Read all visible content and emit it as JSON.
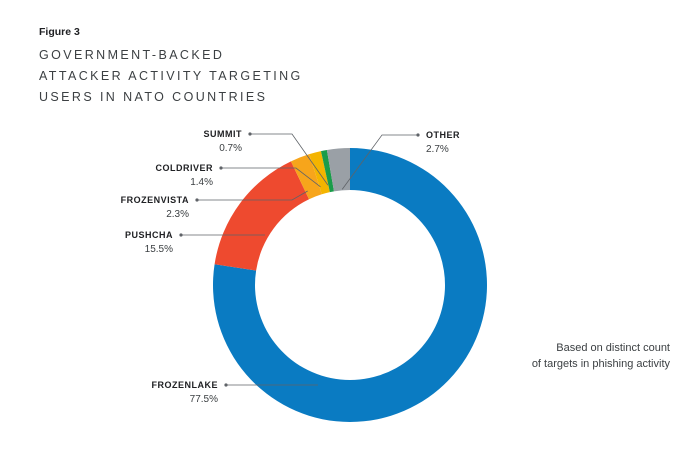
{
  "figure_label": "Figure 3",
  "title_lines": [
    "GOVERNMENT-BACKED",
    "ATTACKER ACTIVITY TARGETING",
    "USERS IN NATO COUNTRIES"
  ],
  "note_lines": [
    "Based on distinct count",
    "of targets in phishing activity"
  ],
  "chart_data": {
    "type": "pie",
    "donut": true,
    "series": [
      {
        "label": "FROZENLAKE",
        "value": 77.5,
        "value_label": "77.5%",
        "color": "#0a7bc2"
      },
      {
        "label": "PUSHCHA",
        "value": 15.5,
        "value_label": "15.5%",
        "color": "#ee4a2f"
      },
      {
        "label": "FROZENVISTA",
        "value": 2.3,
        "value_label": "2.3%",
        "color": "#f7a51b"
      },
      {
        "label": "COLDRIVER",
        "value": 1.4,
        "value_label": "1.4%",
        "color": "#f4b400"
      },
      {
        "label": "SUMMIT",
        "value": 0.7,
        "value_label": "0.7%",
        "color": "#1a9c4a"
      },
      {
        "label": "OTHER",
        "value": 2.7,
        "value_label": "2.7%",
        "color": "#9aa0a6"
      }
    ]
  }
}
